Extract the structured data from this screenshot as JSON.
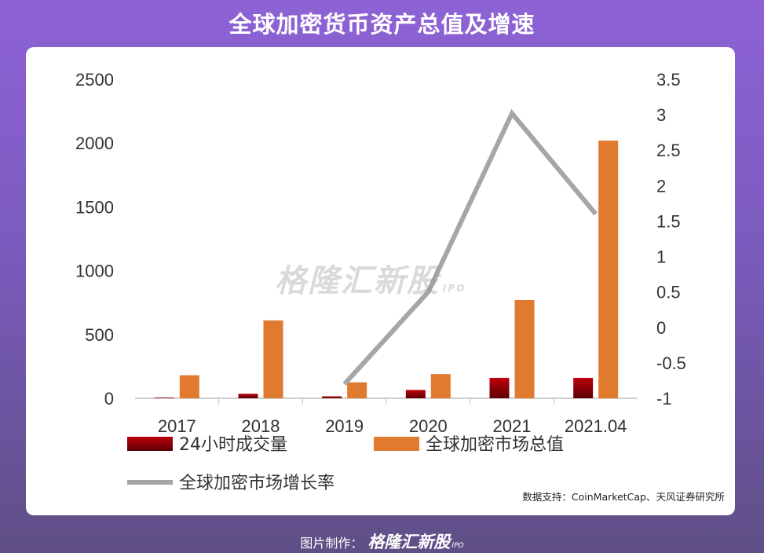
{
  "title": "全球加密货币资产总值及增速",
  "watermark": {
    "brand": "格隆汇新股",
    "sub": "IPO"
  },
  "source": "数据支持：CoinMarketCap、天风证券研究所",
  "footer": {
    "label": "图片制作：",
    "brand": "格隆汇新股",
    "sub": "IPO"
  },
  "colors": {
    "volume": "#c0000b",
    "market_cap": "#e07a2e",
    "growth": "#a6a6a6"
  },
  "chart_data": {
    "type": "bar",
    "categories": [
      "2017",
      "2018",
      "2019",
      "2020",
      "2021",
      "2021.04"
    ],
    "series": [
      {
        "name": "24小时成交量",
        "type": "bar",
        "axis": "left",
        "values": [
          5,
          35,
          15,
          65,
          160,
          160
        ]
      },
      {
        "name": "全球加密市场总值",
        "type": "bar",
        "axis": "left",
        "values": [
          180,
          610,
          125,
          190,
          770,
          2020
        ]
      },
      {
        "name": "全球加密市场增长率",
        "type": "line",
        "axis": "right",
        "values": [
          null,
          null,
          -0.8,
          0.5,
          3.02,
          1.6
        ]
      }
    ],
    "y_left": {
      "ylim": [
        0,
        2500
      ],
      "ticks": [
        "2500",
        "2000",
        "1500",
        "1000",
        "500",
        "0"
      ]
    },
    "y_right": {
      "ylim": [
        -1,
        3.5
      ],
      "ticks": [
        "3.5",
        "3",
        "2.5",
        "2",
        "1.5",
        "1",
        "0.5",
        "0",
        "-0.5",
        "-1"
      ]
    },
    "legend_position": "bottom",
    "grid": false
  }
}
